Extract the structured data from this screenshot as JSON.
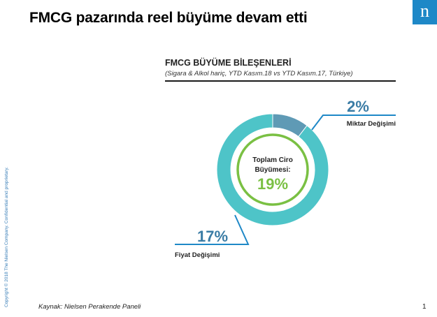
{
  "slide": {
    "title": "FMCG pazarında reel büyüme devam etti",
    "logo_letter": "n",
    "copyright": "Copyright © 2018 The Nielsen Company. Confidential and proprietary.",
    "source": "Kaynak: Nielsen Perakende Paneli",
    "page_number": "1"
  },
  "colors": {
    "fiyat": "#4ec4c8",
    "miktar": "#5f9ab5",
    "center_ring": "#7ac043",
    "total_value": "#7ac043",
    "value_text": "#3a7ca5",
    "leader": "#1e88c7",
    "logo": "#1e88c7"
  },
  "chart_data": {
    "type": "pie",
    "title": "FMCG BÜYÜME BİLEŞENLERİ",
    "subtitle": "(Sigara & Alkol hariç, YTD Kasım.18 vs YTD Kasım.17, Türkiye)",
    "center_label_line1": "Toplam Ciro",
    "center_label_line2": "Büyümesi:",
    "total_label": "19%",
    "total_value": 19,
    "categories": [
      "Miktar Değişimi",
      "Fiyat Değişimi"
    ],
    "values": [
      2,
      17
    ],
    "value_labels": [
      "2%",
      "17%"
    ]
  }
}
